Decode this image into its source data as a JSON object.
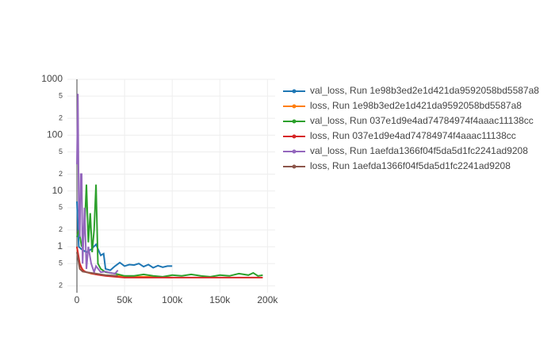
{
  "chart_data": {
    "type": "line",
    "log_y": true,
    "grid": true,
    "xlim": [
      -10000,
      208000
    ],
    "ylim": [
      0.15,
      1000
    ],
    "xticks": [
      0,
      {
        "value": 50000,
        "label": "50k"
      },
      {
        "value": 100000,
        "label": "100k"
      },
      {
        "value": 150000,
        "label": "150k"
      },
      {
        "value": 200000,
        "label": "200k"
      }
    ],
    "yticks": [
      {
        "value": 0.2,
        "label": "2"
      },
      {
        "value": 0.5,
        "label": "5"
      },
      1,
      {
        "value": 2,
        "label": "2"
      },
      {
        "value": 5,
        "label": "5"
      },
      10,
      {
        "value": 20,
        "label": "2"
      },
      {
        "value": 50,
        "label": "5"
      },
      100,
      {
        "value": 200,
        "label": "2"
      },
      {
        "value": 500,
        "label": "5"
      },
      1000
    ],
    "series": [
      {
        "name": "val_loss, Run 1e98b3ed2e1d421da9592058bd5587a8",
        "color": "#1f77b4",
        "x": [
          0,
          2000,
          5000,
          10000,
          15000,
          20000,
          25000,
          28000,
          30000,
          35000,
          40000,
          45000,
          50000,
          55000,
          60000,
          65000,
          70000,
          75000,
          80000,
          85000,
          90000,
          95000,
          100000
        ],
        "values": [
          6.5,
          1,
          0.9,
          0.8,
          0.9,
          1.1,
          0.7,
          0.75,
          0.4,
          0.38,
          0.45,
          0.52,
          0.45,
          0.48,
          0.47,
          0.5,
          0.44,
          0.48,
          0.42,
          0.46,
          0.43,
          0.45,
          0.45
        ]
      },
      {
        "name": "loss, Run 1e98b3ed2e1d421da9592058bd5587a8",
        "color": "#ff7f0e",
        "x": [
          0,
          3000,
          8000,
          15000,
          25000,
          40000,
          60000,
          80000,
          100000
        ],
        "values": [
          1,
          0.45,
          0.36,
          0.33,
          0.31,
          0.3,
          0.29,
          0.29,
          0.28
        ]
      },
      {
        "name": "val_loss, Run 037e1d9e4ad74784974f4aaac11138cc",
        "color": "#2ca02c",
        "x": [
          0,
          2000,
          5000,
          8000,
          10000,
          12000,
          14000,
          16000,
          18000,
          20000,
          22000,
          25000,
          30000,
          40000,
          50000,
          60000,
          70000,
          80000,
          90000,
          100000,
          110000,
          120000,
          130000,
          140000,
          150000,
          160000,
          170000,
          180000,
          185000,
          190000,
          195000
        ],
        "values": [
          1.5,
          2,
          1,
          2,
          13,
          1.2,
          4,
          0.8,
          2,
          13,
          0.5,
          0.4,
          0.35,
          0.33,
          0.3,
          0.3,
          0.32,
          0.3,
          0.29,
          0.31,
          0.3,
          0.32,
          0.3,
          0.29,
          0.31,
          0.3,
          0.33,
          0.31,
          0.34,
          0.3,
          0.31
        ]
      },
      {
        "name": "loss, Run 037e1d9e4ad74784974f4aaac11138cc",
        "color": "#d62728",
        "x": [
          0,
          3000,
          6000,
          10000,
          20000,
          30000,
          50000,
          80000,
          120000,
          160000,
          195000
        ],
        "values": [
          1,
          0.5,
          0.38,
          0.35,
          0.32,
          0.3,
          0.28,
          0.28,
          0.28,
          0.28,
          0.28
        ]
      },
      {
        "name": "val_loss, Run 1aefda1366f04f5da5d1fc2241ad9208",
        "color": "#9467bd",
        "x": [
          0,
          1000,
          2000,
          3000,
          4000,
          5000,
          6000,
          8000,
          10000,
          12000,
          15000,
          18000,
          20000,
          25000,
          30000,
          35000,
          40000,
          43000
        ],
        "values": [
          30,
          550,
          5,
          1.5,
          20,
          20,
          0.5,
          5,
          0.4,
          1,
          0.5,
          0.35,
          0.45,
          0.35,
          0.36,
          0.34,
          0.33,
          0.38
        ]
      },
      {
        "name": "loss, Run 1aefda1366f04f5da5d1fc2241ad9208",
        "color": "#8c564b",
        "x": [
          0,
          3000,
          6000,
          10000,
          20000,
          30000,
          43000
        ],
        "values": [
          0.8,
          0.4,
          0.36,
          0.35,
          0.33,
          0.31,
          0.3
        ]
      }
    ]
  }
}
